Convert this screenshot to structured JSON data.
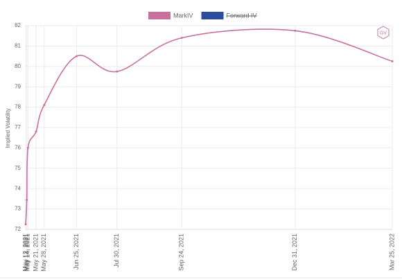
{
  "chart_data": {
    "type": "line",
    "y_label": "Implied Volatility",
    "logo": "GV",
    "x": [
      "May 12, 2021",
      "May 13, 2021",
      "May 14, 2021",
      "May 21, 2021",
      "May 28, 2021",
      "Jun 25, 2021",
      "Jul 30, 2021",
      "Sep 24, 2021",
      "Dec 31, 2021",
      "Mar 25, 2022"
    ],
    "xlim": [
      "May 12, 2021",
      "Mar 25, 2022"
    ],
    "series": [
      {
        "name": "MarkIV",
        "color": "#c9709f",
        "values": [
          72.25,
          73.45,
          76.0,
          76.8,
          78.1,
          80.5,
          79.75,
          81.4,
          81.75,
          80.25
        ]
      },
      {
        "name": "Forward IV",
        "color": "#2c4c9c",
        "hidden": true,
        "values": [
          null,
          null,
          null,
          null,
          null,
          null,
          null,
          null,
          null,
          null
        ]
      }
    ],
    "ylim": [
      72,
      82
    ],
    "yticks": [
      72,
      73,
      74,
      75,
      76,
      77,
      78,
      79,
      80,
      81,
      82
    ],
    "grid": true
  }
}
